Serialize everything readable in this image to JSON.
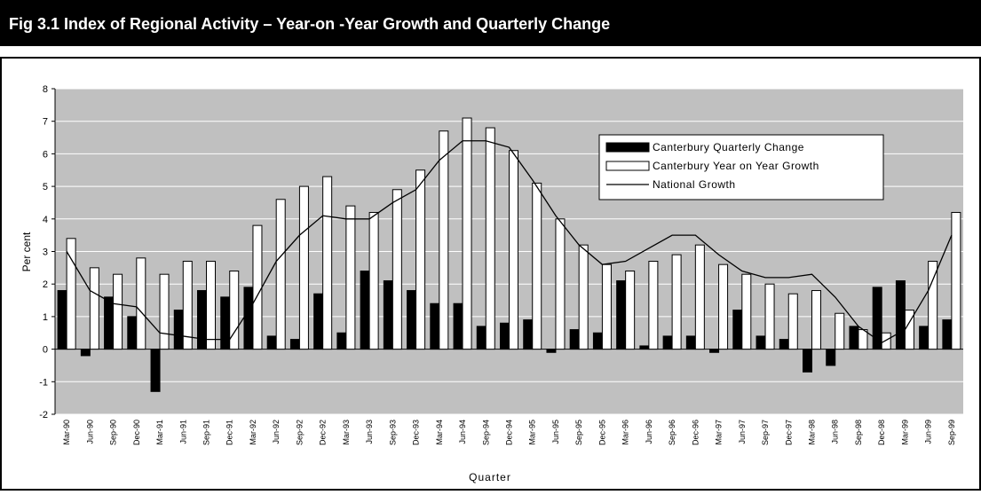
{
  "chart_data": {
    "type": "bar",
    "title": "Fig 3.1 Index of Regional Activity – Year-on -Year Growth and Quarterly Change",
    "x_label": "Quarter",
    "y_label": "Per cent",
    "categories": [
      "Mar-90",
      "Jun-90",
      "Sep-90",
      "Dec-90",
      "Mar-91",
      "Jun-91",
      "Sep-91",
      "Dec-91",
      "Mar-92",
      "Jun-92",
      "Sep-92",
      "Dec-92",
      "Mar-93",
      "Jun-93",
      "Sep-93",
      "Dec-93",
      "Mar-94",
      "Jun-94",
      "Sep-94",
      "Dec-94",
      "Mar-95",
      "Jun-95",
      "Sep-95",
      "Dec-95",
      "Mar-96",
      "Jun-96",
      "Sep-96",
      "Dec-96",
      "Mar-97",
      "Jun-97",
      "Sep-97",
      "Dec-97",
      "Mar-98",
      "Jun-98",
      "Sep-98",
      "Dec-98",
      "Mar-99",
      "Jun-99",
      "Sep-99"
    ],
    "series": [
      {
        "name": "Canterbury Quarterly Change",
        "type": "bar",
        "color": "#000000",
        "values": [
          1.8,
          -0.2,
          1.6,
          1.0,
          -1.3,
          1.2,
          1.8,
          1.6,
          1.9,
          0.4,
          0.3,
          1.7,
          0.5,
          2.4,
          2.1,
          1.8,
          1.4,
          1.4,
          0.7,
          0.8,
          0.9,
          -0.1,
          0.6,
          0.5,
          2.1,
          0.1,
          0.4,
          0.4,
          -0.1,
          1.2,
          0.4,
          0.3,
          -0.7,
          -0.5,
          0.7,
          1.9,
          2.1,
          0.7,
          0.9
        ]
      },
      {
        "name": "Canterbury Year on Year Growth",
        "type": "bar",
        "color": "#ffffff",
        "values": [
          3.4,
          2.5,
          2.3,
          2.8,
          2.3,
          2.7,
          2.7,
          2.4,
          3.8,
          4.6,
          5.0,
          5.3,
          4.4,
          4.2,
          4.9,
          5.5,
          6.7,
          7.1,
          6.8,
          6.1,
          5.1,
          4.0,
          3.2,
          2.6,
          2.4,
          2.7,
          2.9,
          3.2,
          2.6,
          2.3,
          2.0,
          1.7,
          1.8,
          1.1,
          0.6,
          0.5,
          1.2,
          2.7,
          4.2
        ]
      },
      {
        "name": "National Growth",
        "type": "line",
        "color": "#000000",
        "values": [
          3.0,
          1.8,
          1.4,
          1.3,
          0.5,
          0.4,
          0.3,
          0.3,
          1.4,
          2.7,
          3.5,
          4.1,
          4.0,
          4.0,
          4.5,
          4.9,
          5.8,
          6.4,
          6.4,
          6.2,
          5.2,
          4.1,
          3.2,
          2.6,
          2.7,
          3.1,
          3.5,
          3.5,
          2.9,
          2.4,
          2.2,
          2.2,
          2.3,
          1.6,
          0.7,
          0.2,
          0.6,
          1.8,
          3.5
        ]
      }
    ],
    "ylim": [
      -2,
      8
    ],
    "yticks": [
      -2,
      -1,
      0,
      1,
      2,
      3,
      4,
      5,
      6,
      7,
      8
    ],
    "grid": true,
    "plot_background": "#c0c0c0",
    "legend": "upper right"
  }
}
